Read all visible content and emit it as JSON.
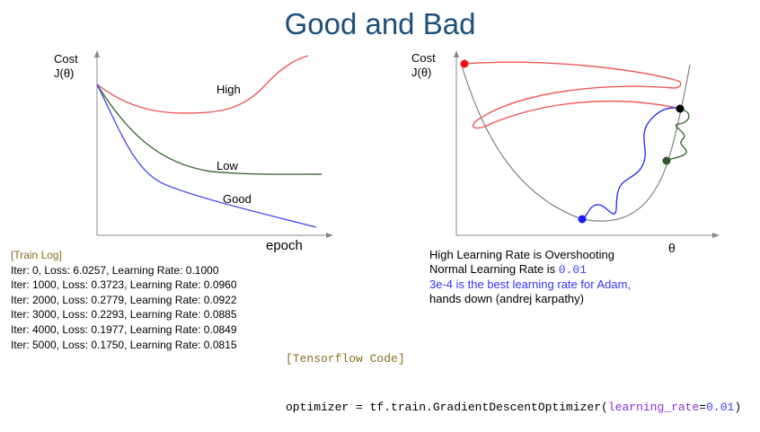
{
  "slide": {
    "title": "Good and Bad"
  },
  "left_plot": {
    "ylabel_line1": "Cost",
    "ylabel_line2": "J(θ)",
    "xlabel": "epoch",
    "curves": [
      {
        "label": "High",
        "color": "#f05a5a"
      },
      {
        "label": "Low",
        "color": "#3d6b35"
      },
      {
        "label": "Good",
        "color": "#5050f0"
      }
    ]
  },
  "right_plot": {
    "ylabel_line1": "Cost",
    "ylabel_line2": "J(θ)",
    "xlabel": "θ",
    "colors": {
      "high": "#f05a5a",
      "low": "#3d6b35",
      "good": "#3030f0",
      "bowl": "#808080",
      "start": "#000000"
    }
  },
  "notes": {
    "line1": "High Learning Rate is Overshooting",
    "line2_prefix": "Normal Learning Rate is ",
    "line2_value": "0.01",
    "line3": "3e-4 is the best learning rate for Adam,",
    "line4": "hands down (andrej karpathy)"
  },
  "train_log": {
    "header": "[Train Log]",
    "lines": [
      "Iter: 0, Loss: 6.0257, Learning Rate: 0.1000",
      "Iter: 1000, Loss: 0.3723, Learning Rate: 0.0960",
      "Iter: 2000, Loss: 0.2779, Learning Rate: 0.0922",
      "Iter: 3000, Loss: 0.2293, Learning Rate: 0.0885",
      "Iter: 4000, Loss: 0.1977, Learning Rate: 0.0849",
      "Iter: 5000, Loss: 0.1750, Learning Rate: 0.0815"
    ]
  },
  "tf_code": {
    "header": "[Tensorflow Code]",
    "prefix": "optimizer = tf.train.GradientDescentOptimizer(",
    "kwarg": "learning_rate",
    "eq": "=",
    "value": "0.01",
    "suffix": ")"
  }
}
